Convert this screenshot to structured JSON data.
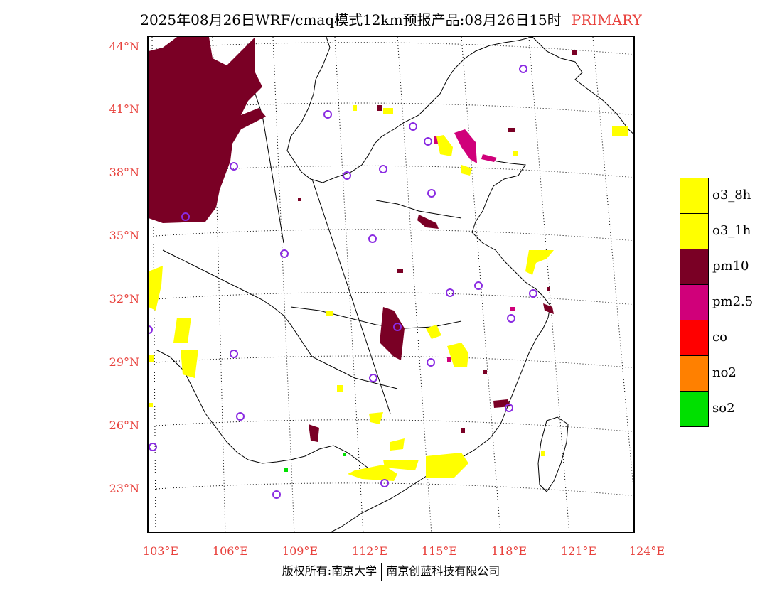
{
  "title": {
    "text": "2025年08月26日WRF/cmaq模式12km预报产品:08月26日15时",
    "mode": "PRIMARY"
  },
  "map": {
    "lat_labels": [
      "44°N",
      "41°N",
      "38°N",
      "35°N",
      "32°N",
      "29°N",
      "26°N",
      "23°N"
    ],
    "lon_labels": [
      "103°E",
      "106°E",
      "109°E",
      "112°E",
      "115°E",
      "118°E",
      "121°E",
      "124°E"
    ],
    "colors": {
      "o3_8h": "#ffff00",
      "o3_1h": "#ffff00",
      "pm10": "#7a0025",
      "pm25": "#d0007a",
      "co": "#ff0000",
      "no2": "#ff8000",
      "so2": "#00e000",
      "city_marker": "#8a2be2"
    }
  },
  "legend": {
    "items": [
      {
        "label": "o3_8h",
        "color": "#ffff00"
      },
      {
        "label": "o3_1h",
        "color": "#ffff00"
      },
      {
        "label": "pm10",
        "color": "#7a0025"
      },
      {
        "label": "pm2.5",
        "color": "#d0007a"
      },
      {
        "label": "co",
        "color": "#ff0000"
      },
      {
        "label": "no2",
        "color": "#ff8000"
      },
      {
        "label": "so2",
        "color": "#00e000"
      }
    ]
  },
  "footer": {
    "left": "版权所有:南京大学",
    "right": "南京创蓝科技有限公司"
  }
}
